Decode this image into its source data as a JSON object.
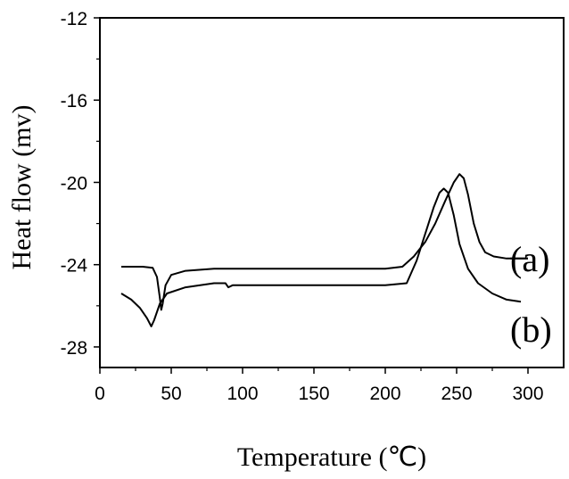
{
  "chart_data": {
    "type": "line",
    "title": "",
    "xlabel": "Temperature (℃)",
    "ylabel": "Heat flow (mv)",
    "xlim": [
      0,
      325
    ],
    "ylim": [
      -29,
      -12
    ],
    "x_ticks": [
      0,
      50,
      100,
      150,
      200,
      250,
      300
    ],
    "y_ticks": [
      -12,
      -16,
      -20,
      -24,
      -28
    ],
    "grid": false,
    "legend": "inline-right",
    "series": [
      {
        "name": "(a)",
        "points": [
          [
            15,
            -24.1
          ],
          [
            30,
            -24.1
          ],
          [
            37,
            -24.15
          ],
          [
            40,
            -24.6
          ],
          [
            42,
            -25.6
          ],
          [
            43,
            -26.2
          ],
          [
            44,
            -25.9
          ],
          [
            46,
            -25.0
          ],
          [
            50,
            -24.5
          ],
          [
            60,
            -24.3
          ],
          [
            80,
            -24.2
          ],
          [
            150,
            -24.2
          ],
          [
            200,
            -24.2
          ],
          [
            212,
            -24.1
          ],
          [
            220,
            -23.6
          ],
          [
            228,
            -22.9
          ],
          [
            235,
            -22.0
          ],
          [
            242,
            -20.9
          ],
          [
            248,
            -20.0
          ],
          [
            252,
            -19.6
          ],
          [
            255,
            -19.8
          ],
          [
            258,
            -20.6
          ],
          [
            262,
            -22.0
          ],
          [
            266,
            -22.9
          ],
          [
            270,
            -23.4
          ],
          [
            276,
            -23.6
          ],
          [
            285,
            -23.7
          ],
          [
            300,
            -23.7
          ]
        ]
      },
      {
        "name": "(b)",
        "points": [
          [
            15,
            -25.4
          ],
          [
            22,
            -25.7
          ],
          [
            28,
            -26.1
          ],
          [
            33,
            -26.6
          ],
          [
            36,
            -27.0
          ],
          [
            38,
            -26.7
          ],
          [
            42,
            -25.9
          ],
          [
            47,
            -25.4
          ],
          [
            60,
            -25.1
          ],
          [
            80,
            -24.9
          ],
          [
            88,
            -24.9
          ],
          [
            90,
            -25.1
          ],
          [
            93,
            -25.0
          ],
          [
            100,
            -25.0
          ],
          [
            150,
            -25.0
          ],
          [
            200,
            -25.0
          ],
          [
            215,
            -24.9
          ],
          [
            222,
            -23.8
          ],
          [
            228,
            -22.5
          ],
          [
            234,
            -21.2
          ],
          [
            238,
            -20.5
          ],
          [
            241,
            -20.3
          ],
          [
            244,
            -20.5
          ],
          [
            248,
            -21.6
          ],
          [
            252,
            -23.0
          ],
          [
            258,
            -24.2
          ],
          [
            265,
            -24.9
          ],
          [
            275,
            -25.4
          ],
          [
            285,
            -25.7
          ],
          [
            295,
            -25.8
          ]
        ]
      }
    ]
  }
}
